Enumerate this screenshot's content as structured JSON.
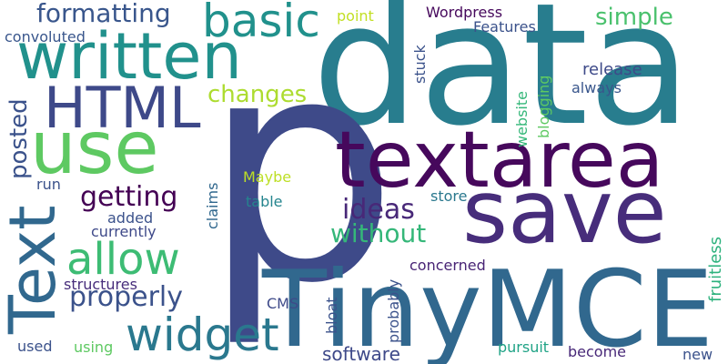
{
  "words": [
    "data",
    "p",
    "textarea",
    "save",
    "TinyMCE",
    "written",
    "basic",
    "formatting",
    "HTML",
    "use",
    "Text",
    "posted",
    "getting",
    "allow",
    "properly",
    "widget",
    "changes",
    "ideas",
    "without",
    "simple",
    "Wordpress",
    "point",
    "Features",
    "convoluted",
    "stuck",
    "release",
    "always",
    "website",
    "blogging",
    "Maybe",
    "table",
    "claims",
    "run",
    "added",
    "currently",
    "store",
    "structures",
    "concerned",
    "probably",
    "fruitless",
    "CMS",
    "bloat",
    "software",
    "pursuit",
    "become",
    "new",
    "used",
    "using"
  ]
}
